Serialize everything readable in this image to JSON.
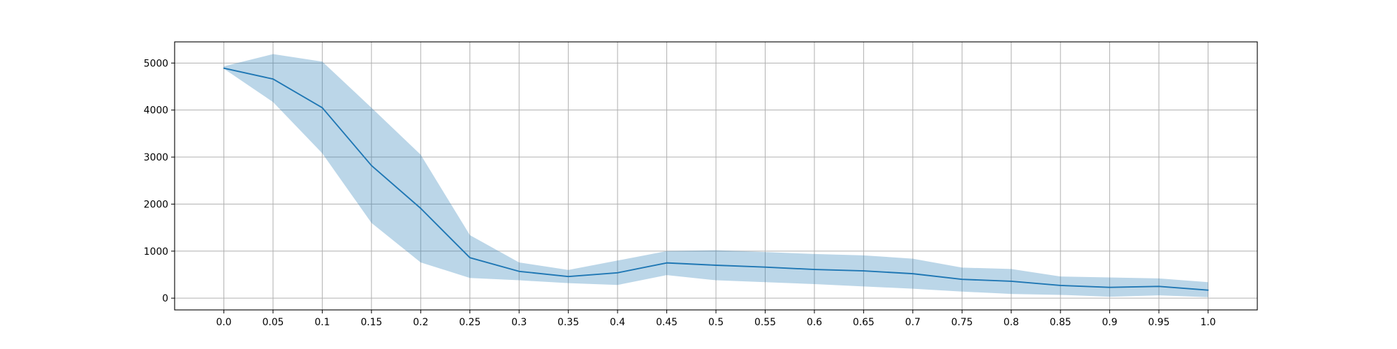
{
  "chart_data": {
    "type": "line",
    "title": "",
    "xlabel": "",
    "ylabel": "",
    "x": [
      0.0,
      0.05,
      0.1,
      0.15,
      0.2,
      0.25,
      0.3,
      0.35,
      0.4,
      0.45,
      0.5,
      0.55,
      0.6,
      0.65,
      0.7,
      0.75,
      0.8,
      0.85,
      0.9,
      0.95,
      1.0
    ],
    "x_tick_labels": [
      "0.0",
      "0.05",
      "0.1",
      "0.15",
      "0.2",
      "0.25",
      "0.3",
      "0.35",
      "0.4",
      "0.45",
      "0.5",
      "0.55",
      "0.6",
      "0.65",
      "0.7",
      "0.75",
      "0.8",
      "0.85",
      "0.9",
      "0.95",
      "1.0"
    ],
    "y_ticks": [
      0,
      1000,
      2000,
      3000,
      4000,
      5000
    ],
    "y_tick_labels": [
      "0",
      "1000",
      "2000",
      "3000",
      "4000",
      "5000"
    ],
    "xlim": [
      -0.05,
      1.05
    ],
    "ylim": [
      -250,
      5450
    ],
    "grid": true,
    "legend": "none",
    "series": [
      {
        "values": [
          4890,
          4660,
          4050,
          2820,
          1910,
          860,
          570,
          460,
          540,
          750,
          700,
          660,
          610,
          580,
          520,
          400,
          360,
          270,
          230,
          250,
          170
        ],
        "band_upper": [
          4930,
          5190,
          5030,
          4050,
          3050,
          1340,
          760,
          600,
          800,
          1000,
          1020,
          980,
          940,
          910,
          840,
          650,
          620,
          460,
          440,
          420,
          340
        ],
        "band_lower": [
          4880,
          4170,
          3080,
          1600,
          760,
          430,
          380,
          320,
          280,
          490,
          380,
          340,
          300,
          250,
          200,
          140,
          90,
          70,
          30,
          60,
          20
        ],
        "color": "#1f77b4",
        "band_color": "#1f77b4",
        "band_opacity": 0.3
      }
    ]
  }
}
